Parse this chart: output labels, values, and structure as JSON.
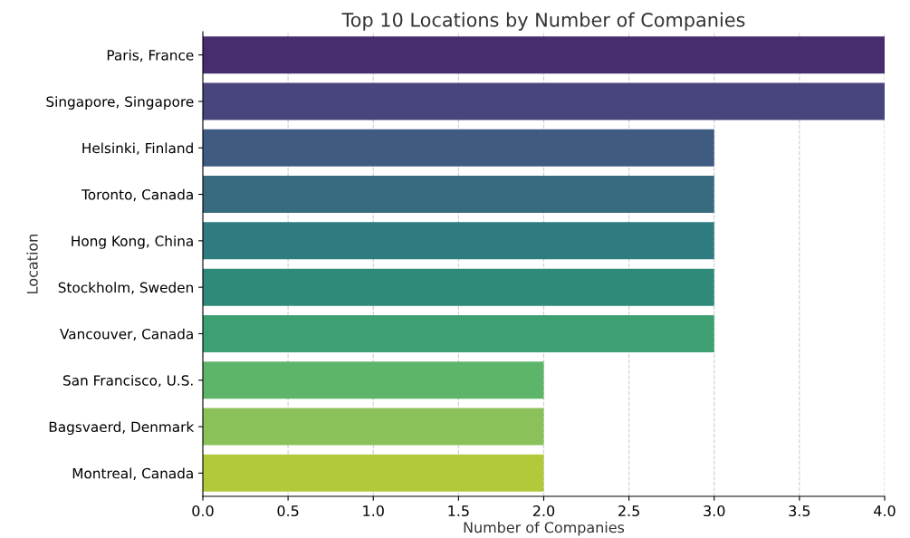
{
  "chart_data": {
    "type": "bar",
    "orientation": "horizontal",
    "title": "Top 10 Locations by Number of Companies",
    "xlabel": "Number of Companies",
    "ylabel": "Location",
    "categories": [
      "Paris, France",
      "Singapore, Singapore",
      "Helsinki, Finland",
      "Toronto, Canada",
      "Hong Kong, China",
      "Stockholm, Sweden",
      "Vancouver, Canada",
      "San Francisco, U.S.",
      "Bagsvaerd, Denmark",
      "Montreal, Canada"
    ],
    "values": [
      4,
      4,
      3,
      3,
      3,
      3,
      3,
      2,
      2,
      2
    ],
    "colors": [
      "#472d6e",
      "#48447c",
      "#3f5b82",
      "#386b80",
      "#2e7b80",
      "#2f8a7a",
      "#3da072",
      "#5db56a",
      "#8bc15b",
      "#b2c93a"
    ],
    "xlim": [
      0,
      4.0
    ],
    "xticks": [
      {
        "value": 0,
        "label": "0.0"
      },
      {
        "value": 0.5,
        "label": "0.5"
      },
      {
        "value": 1,
        "label": "1.0"
      },
      {
        "value": 1.5,
        "label": "1.5"
      },
      {
        "value": 2,
        "label": "2.0"
      },
      {
        "value": 2.5,
        "label": "2.5"
      },
      {
        "value": 3,
        "label": "3.0"
      },
      {
        "value": 3.5,
        "label": "3.5"
      },
      {
        "value": 4,
        "label": "4.0"
      }
    ],
    "grid": "x"
  }
}
